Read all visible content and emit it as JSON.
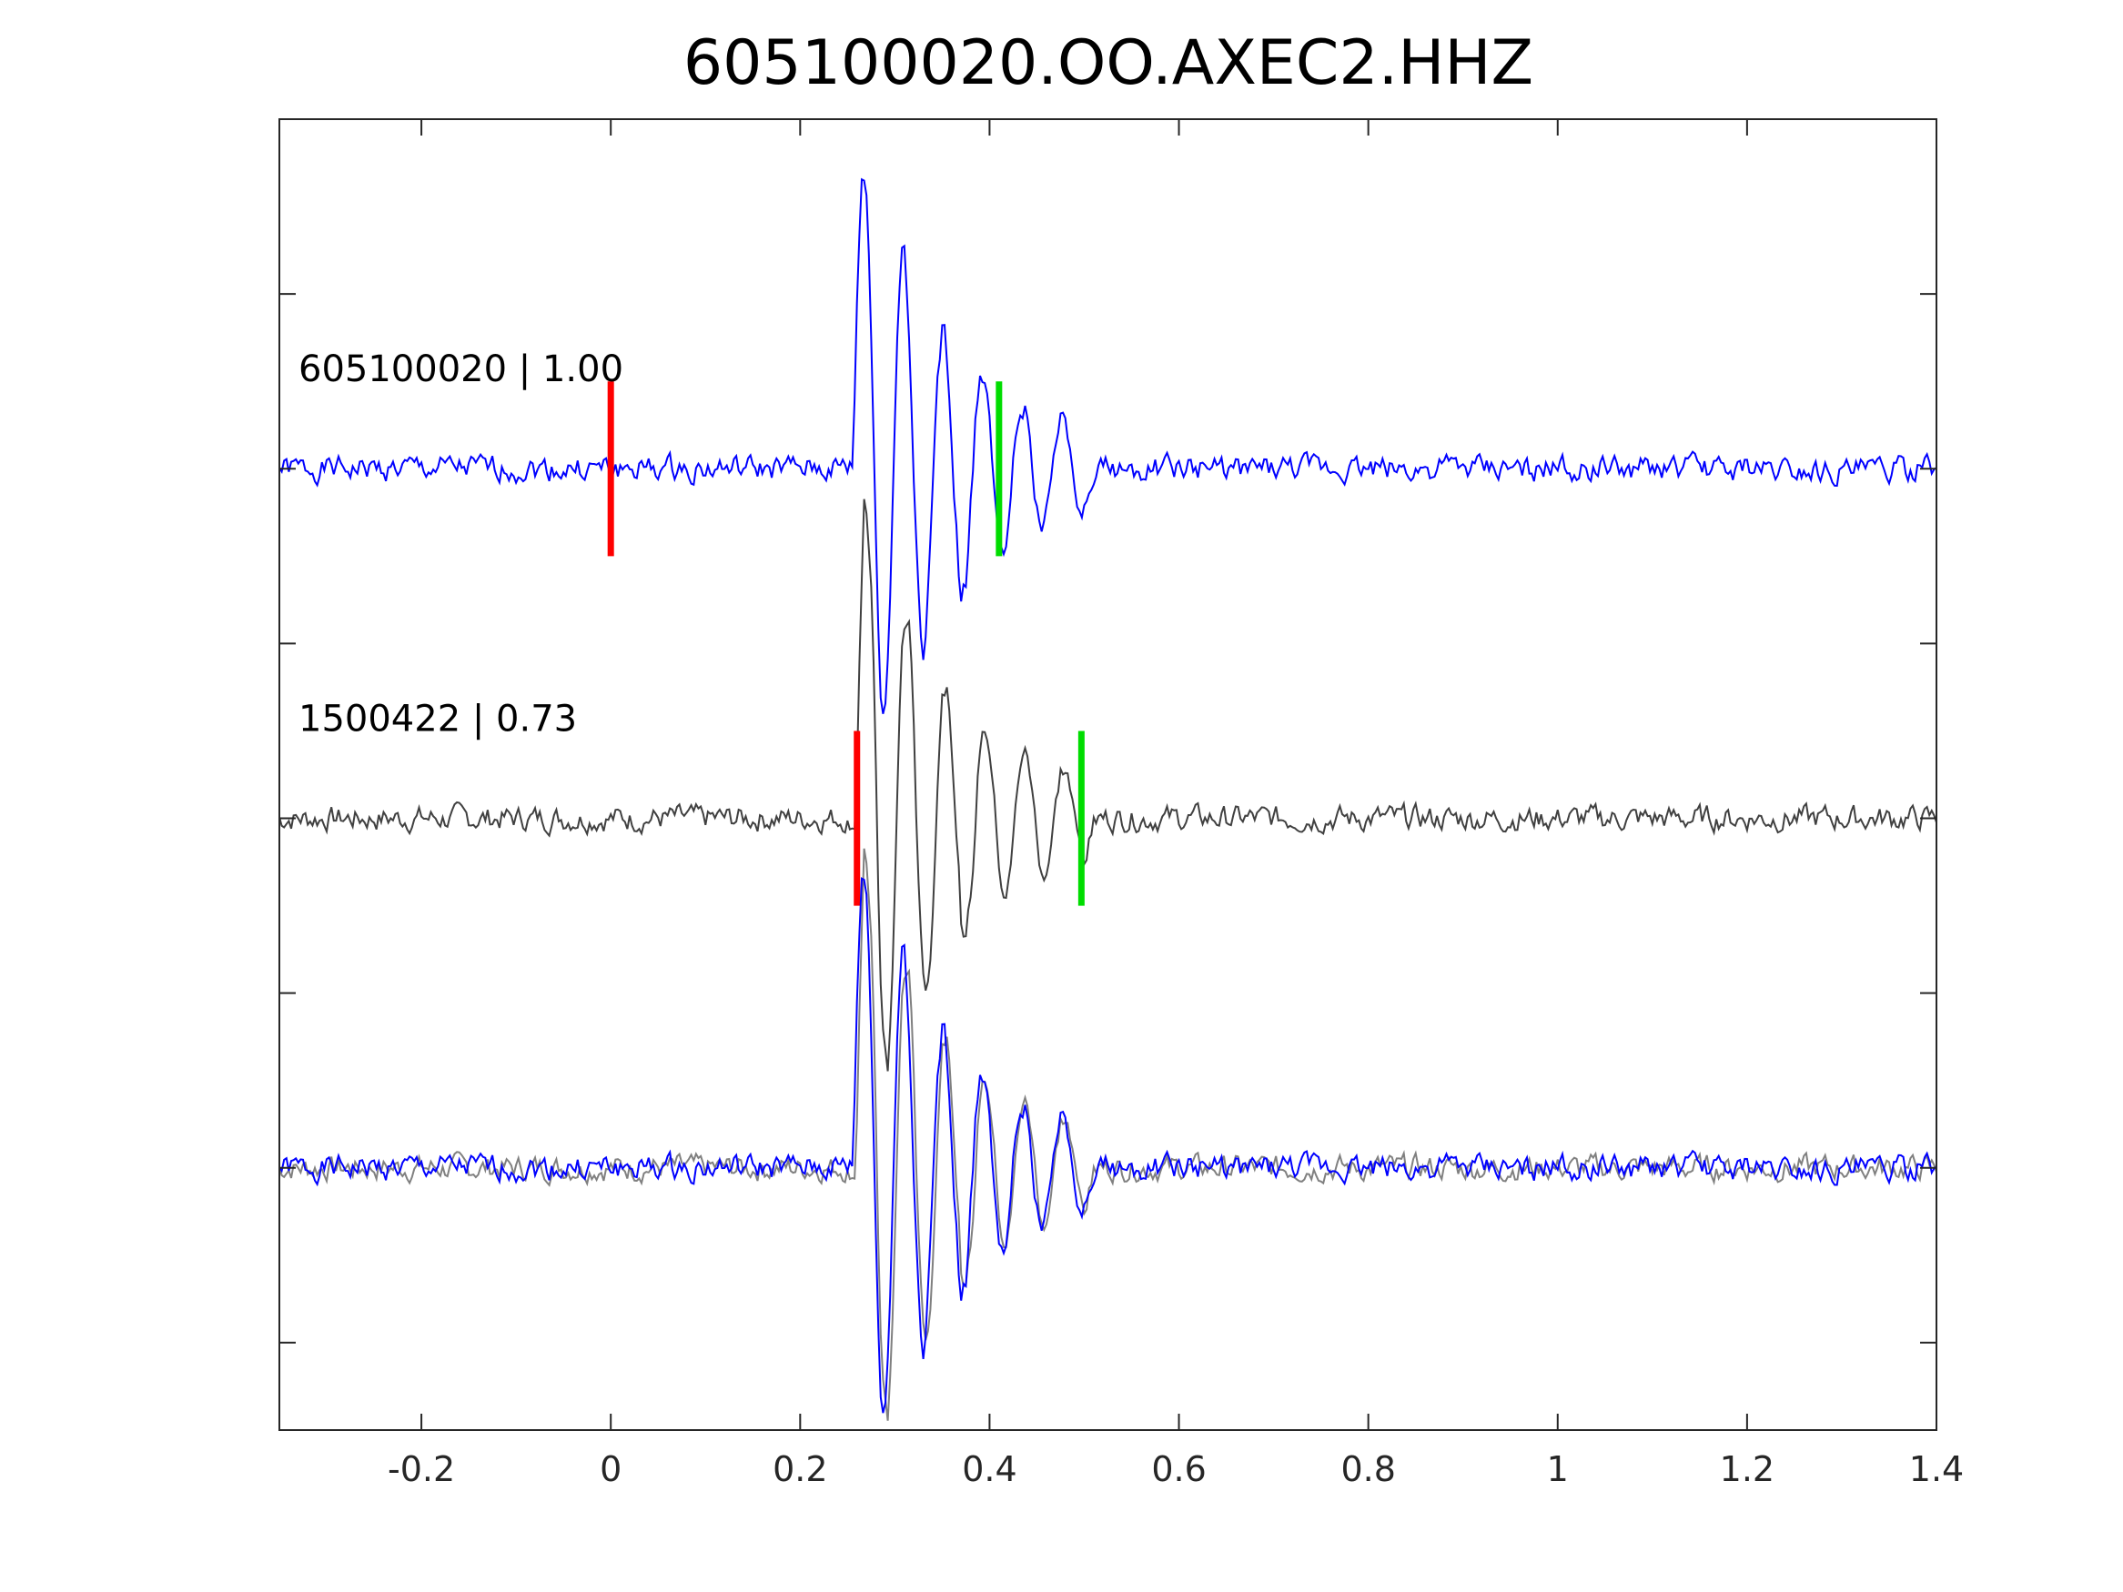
{
  "chart_data": {
    "type": "line",
    "title": "605100020.OO.AXEC2.HHZ",
    "xlabel": "",
    "ylabel": "",
    "xlim": [
      -0.35,
      1.4
    ],
    "xticks": [
      -0.2,
      0,
      0.2,
      0.4,
      0.6,
      0.8,
      1,
      1.2,
      1.4
    ],
    "xtick_labels": [
      "-0.2",
      "0",
      "0.2",
      "0.4",
      "0.6",
      "0.8",
      "1",
      "1.2",
      "1.4"
    ],
    "ylim": [
      -0.25,
      3.5
    ],
    "yticks": [
      0,
      0.5,
      1,
      1.5,
      2,
      2.5,
      3
    ],
    "grid": false,
    "colors": {
      "trace_main": "#0000ff",
      "trace_template": "#404040",
      "trace_overlay_template": "#808080",
      "p_pick": "#ff0000",
      "s_pick": "#00dd00"
    },
    "traces": [
      {
        "label": "605100020 | 1.00",
        "baseline": 2.5,
        "p_pick": 0,
        "s_pick": 0.41,
        "color_key": "trace_main",
        "onset": 0.255,
        "shift": 0,
        "noise_seed": 1
      },
      {
        "label": "1500422 | 0.73",
        "baseline": 1.5,
        "p_pick": 0.26,
        "s_pick": 0.497,
        "color_key": "trace_template",
        "onset": 0.258,
        "shift": 0,
        "noise_seed": 7
      }
    ],
    "overlay": {
      "baseline": 0.5,
      "series": [
        "trace_overlay_template",
        "trace_main"
      ]
    }
  }
}
